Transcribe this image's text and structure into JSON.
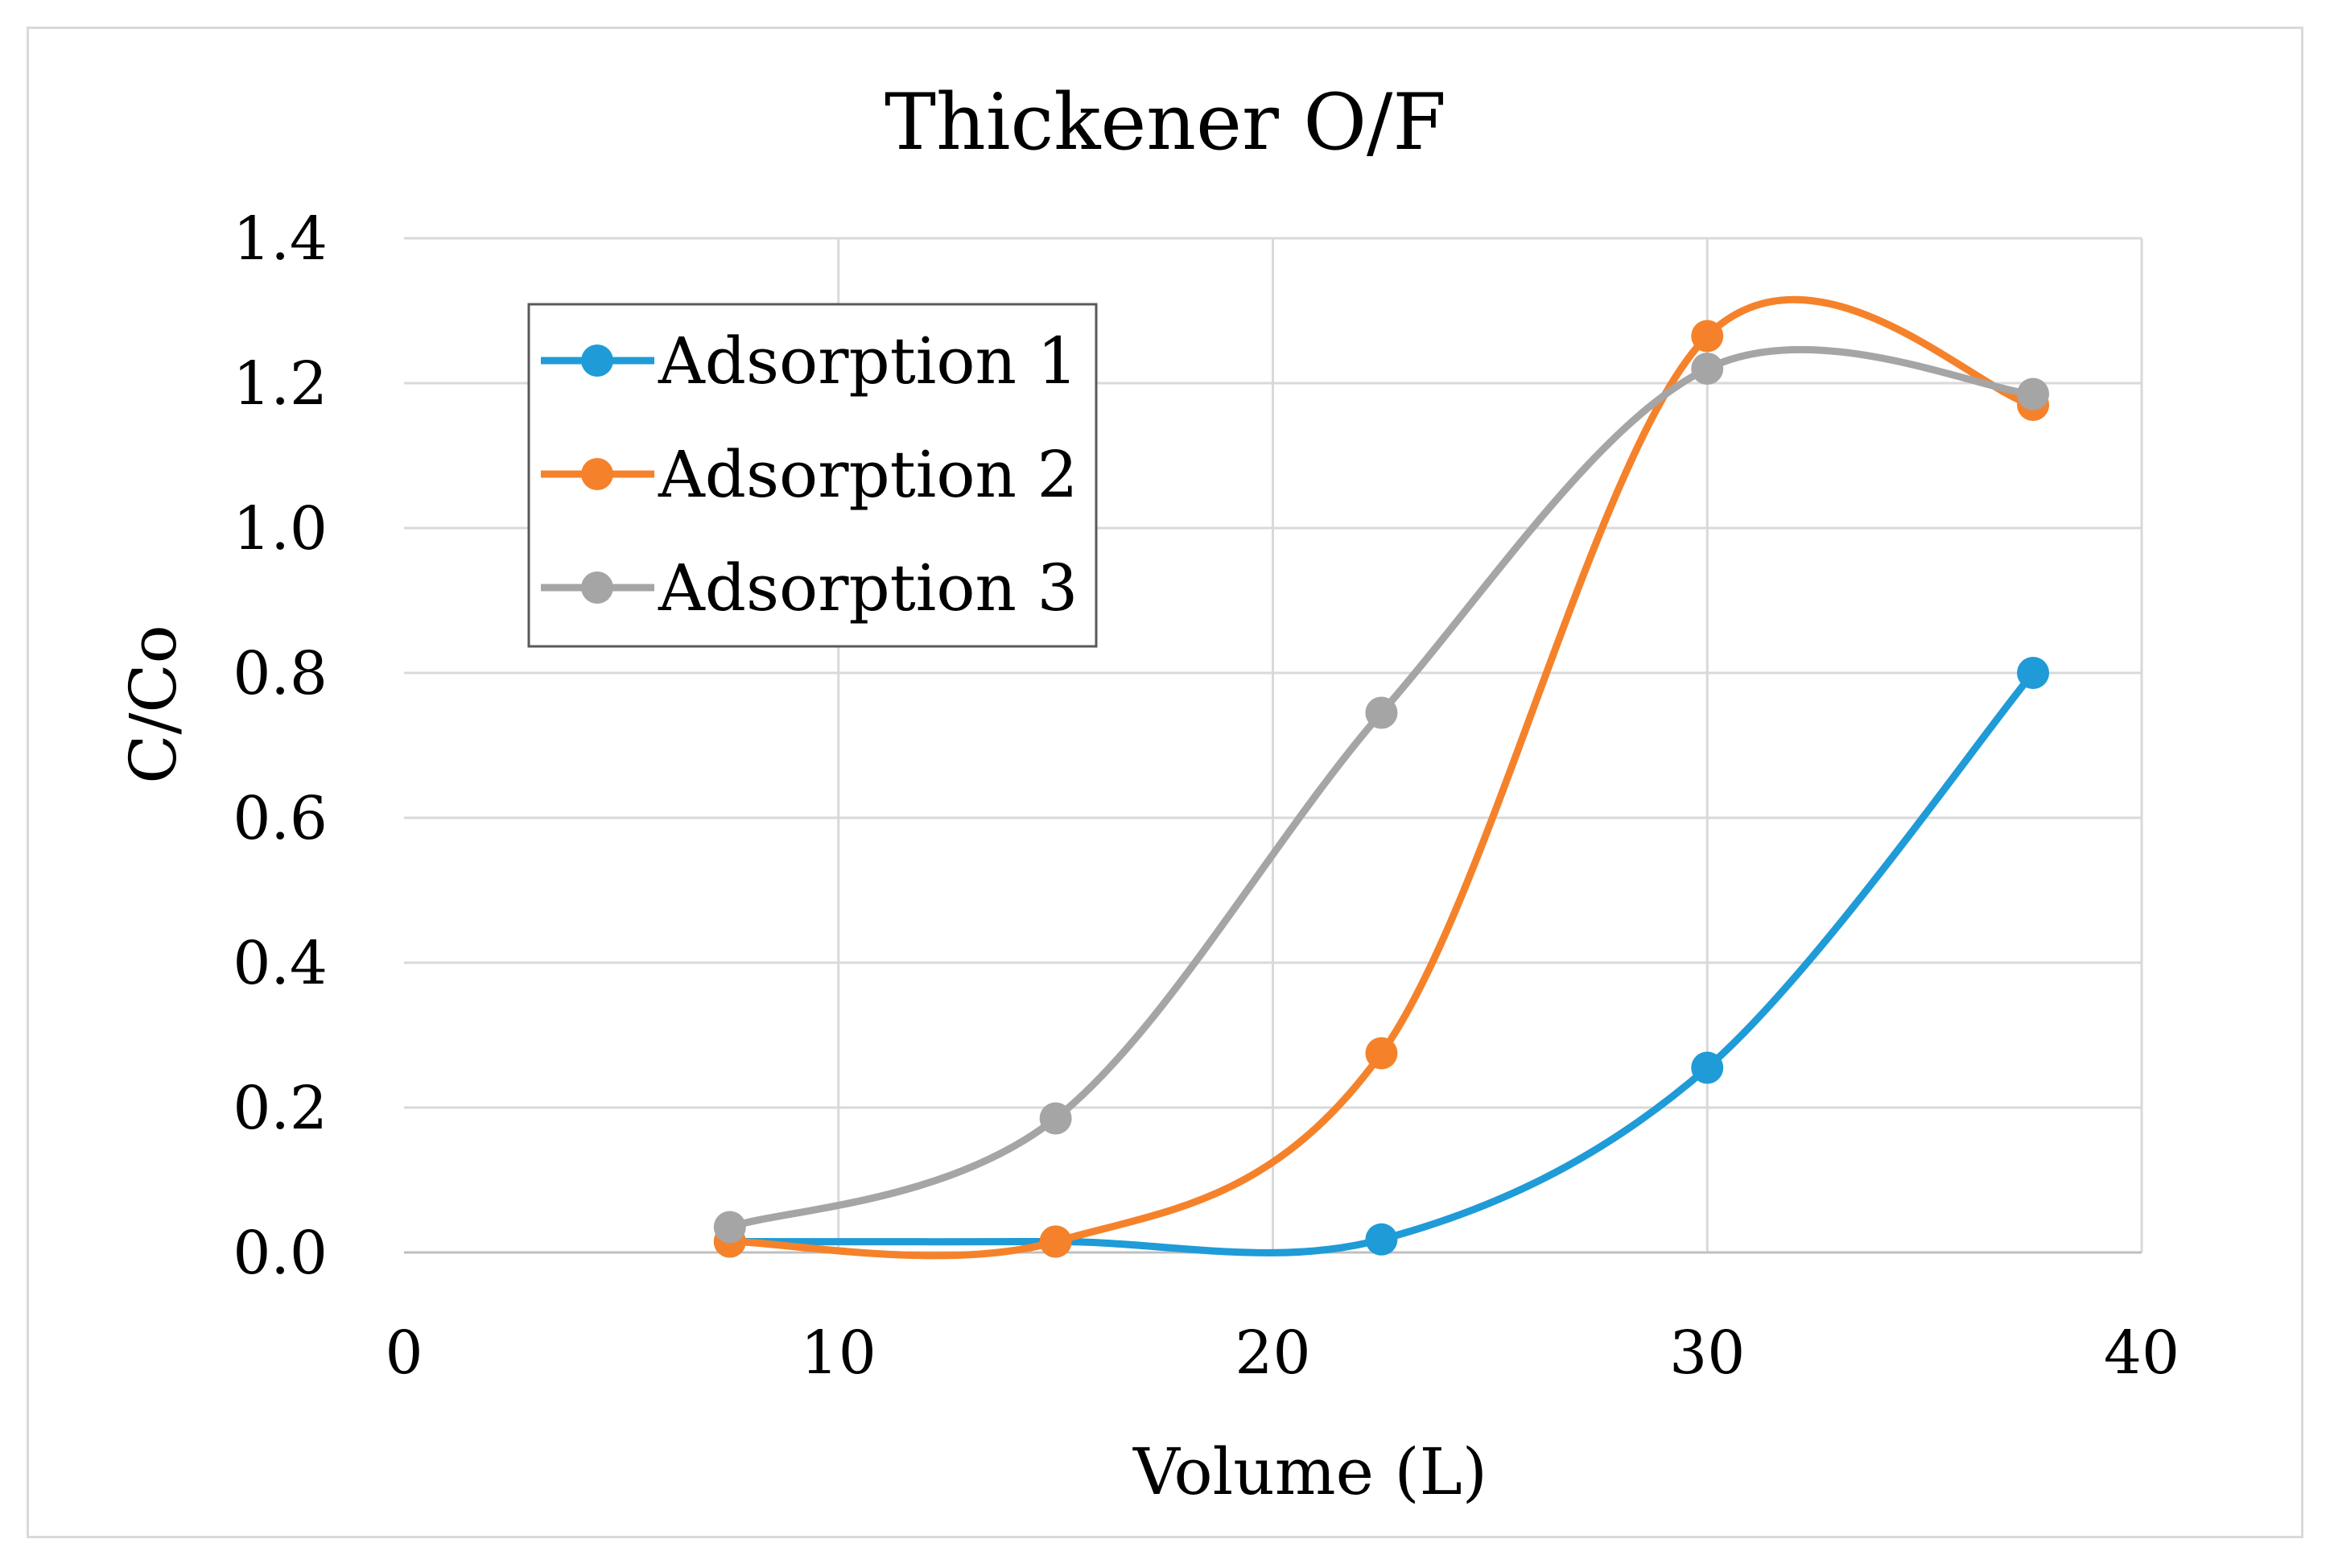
{
  "chart_data": {
    "type": "line",
    "title": "Thickener O/F",
    "xlabel": "Volume (L)",
    "ylabel": "C/Co",
    "xlim": [
      0,
      40
    ],
    "ylim": [
      0,
      1.4
    ],
    "x_ticks": [
      "0",
      "10",
      "20",
      "30",
      "40"
    ],
    "y_ticks": [
      "0.0",
      "0.2",
      "0.4",
      "0.6",
      "0.8",
      "1.0",
      "1.2",
      "1.4"
    ],
    "grid": true,
    "smooth": true,
    "legend_position": "top-left",
    "x": [
      7.5,
      15,
      22.5,
      30,
      37.5
    ],
    "series": [
      {
        "name": "Adsorption 1",
        "color": "#1f9bd7",
        "values": [
          0.015,
          0.015,
          0.018,
          0.255,
          0.8
        ]
      },
      {
        "name": "Adsorption 2",
        "color": "#f5822a",
        "values": [
          0.015,
          0.015,
          0.275,
          1.265,
          1.17
        ]
      },
      {
        "name": "Adsorption 3",
        "color": "#a5a5a5",
        "values": [
          0.035,
          0.185,
          0.745,
          1.22,
          1.185
        ]
      }
    ]
  }
}
